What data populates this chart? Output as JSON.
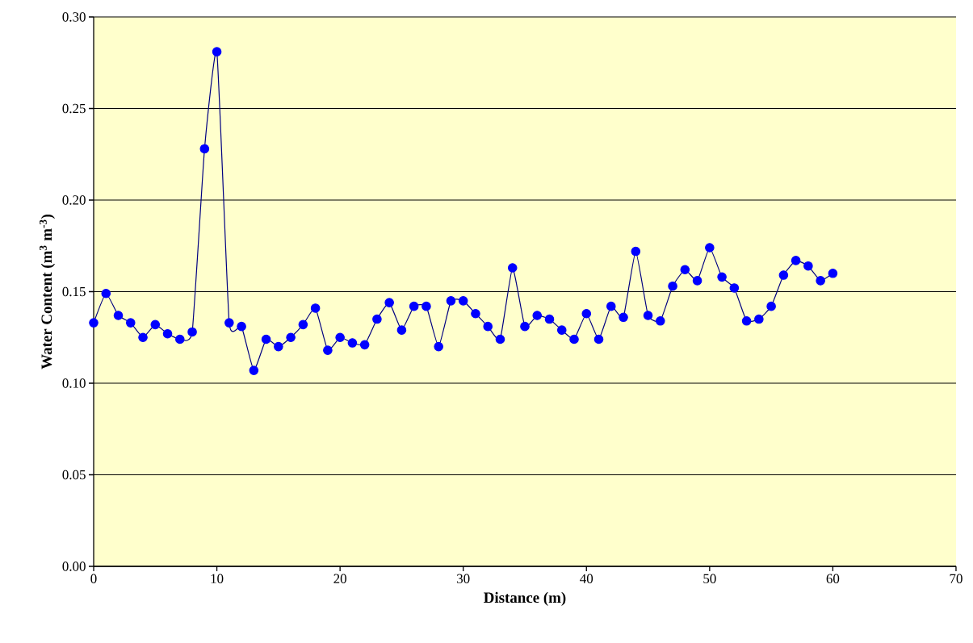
{
  "chart_data": {
    "type": "line",
    "xlabel": "Distance (m)",
    "ylabel": "Water Content (m$^{3}$ m$^{-3}$)",
    "x": [
      0,
      1,
      2,
      3,
      4,
      5,
      6,
      7,
      8,
      9,
      10,
      11,
      12,
      13,
      14,
      15,
      16,
      17,
      18,
      19,
      20,
      21,
      22,
      23,
      24,
      25,
      26,
      27,
      28,
      29,
      30,
      31,
      32,
      33,
      34,
      35,
      36,
      37,
      38,
      39,
      40,
      41,
      42,
      43,
      44,
      45,
      46,
      47,
      48,
      49,
      50,
      51,
      52,
      53,
      54,
      55,
      56,
      57,
      58,
      59,
      60
    ],
    "series": [
      {
        "color": "#0000ff",
        "values": [
          0.133,
          0.149,
          0.137,
          0.133,
          0.125,
          0.132,
          0.127,
          0.124,
          0.128,
          0.228,
          0.281,
          0.133,
          0.131,
          0.107,
          0.124,
          0.12,
          0.125,
          0.132,
          0.141,
          0.118,
          0.125,
          0.122,
          0.121,
          0.135,
          0.144,
          0.129,
          0.142,
          0.142,
          0.12,
          0.145,
          0.145,
          0.138,
          0.131,
          0.124,
          0.163,
          0.131,
          0.137,
          0.135,
          0.129,
          0.124,
          0.138,
          0.124,
          0.142,
          0.136,
          0.172,
          0.137,
          0.134,
          0.153,
          0.162,
          0.156,
          0.174,
          0.158,
          0.152,
          0.134,
          0.135,
          0.142,
          0.159,
          0.167,
          0.164,
          0.156,
          0.16
        ]
      }
    ],
    "xlim": [
      0,
      70
    ],
    "xticks": [
      0,
      10,
      20,
      30,
      40,
      50,
      60,
      70
    ],
    "ylim": [
      0,
      0.3
    ],
    "yticks": [
      {
        "value": 0,
        "label": "0.00"
      },
      {
        "value": 0.05,
        "label": "0.05"
      },
      {
        "value": 0.1,
        "label": "0.10"
      },
      {
        "value": 0.15,
        "label": "0.15"
      },
      {
        "value": 0.2,
        "label": "0.20"
      },
      {
        "value": 0.25,
        "label": "0.25"
      },
      {
        "value": 0.3,
        "label": "0.30"
      }
    ],
    "grid": "y",
    "marker": "circle",
    "line_style": "solid"
  }
}
